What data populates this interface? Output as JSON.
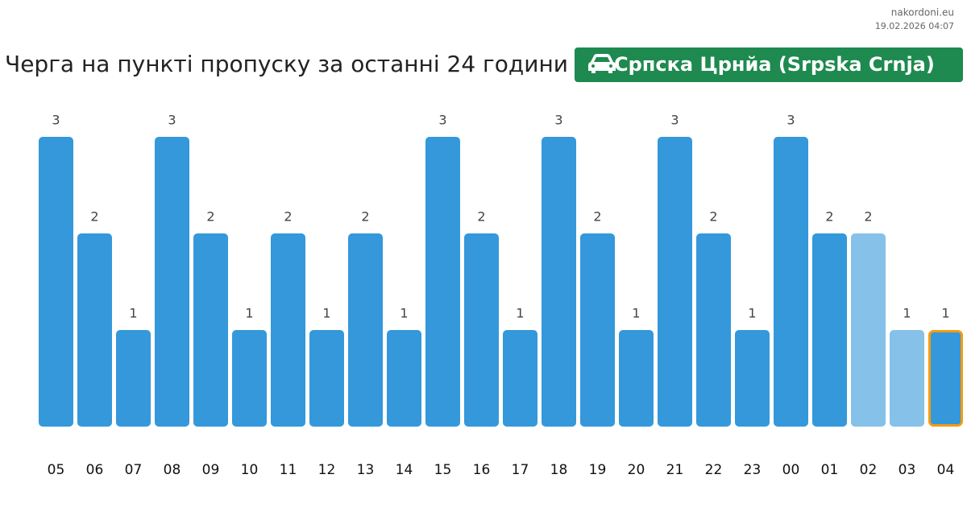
{
  "header": {
    "site": "nakordoni.eu",
    "timestamp": "19.02.2026 04:07",
    "location": "Српска Црнйа (Srpska Crnja)"
  },
  "chart_data": {
    "type": "bar",
    "title": "Черга на пункті пропуску за останні 24 години",
    "categories": [
      "05",
      "06",
      "07",
      "08",
      "09",
      "10",
      "11",
      "12",
      "13",
      "14",
      "15",
      "16",
      "17",
      "18",
      "19",
      "20",
      "21",
      "22",
      "23",
      "00",
      "01",
      "02",
      "03",
      "04"
    ],
    "values": [
      3,
      2,
      1,
      3,
      2,
      1,
      2,
      1,
      2,
      1,
      3,
      2,
      1,
      3,
      2,
      1,
      3,
      2,
      1,
      3,
      2,
      2,
      1,
      1
    ],
    "colors": [
      "#3498db",
      "#3498db",
      "#3498db",
      "#3498db",
      "#3498db",
      "#3498db",
      "#3498db",
      "#3498db",
      "#3498db",
      "#3498db",
      "#3498db",
      "#3498db",
      "#3498db",
      "#3498db",
      "#3498db",
      "#3498db",
      "#3498db",
      "#3498db",
      "#3498db",
      "#3498db",
      "#3498db",
      "#85c1e9",
      "#85c1e9",
      "#3498db"
    ],
    "border_colors": [
      null,
      null,
      null,
      null,
      null,
      null,
      null,
      null,
      null,
      null,
      null,
      null,
      null,
      null,
      null,
      null,
      null,
      null,
      null,
      null,
      null,
      null,
      null,
      "#f39c12"
    ],
    "ylim": [
      0,
      3
    ]
  }
}
